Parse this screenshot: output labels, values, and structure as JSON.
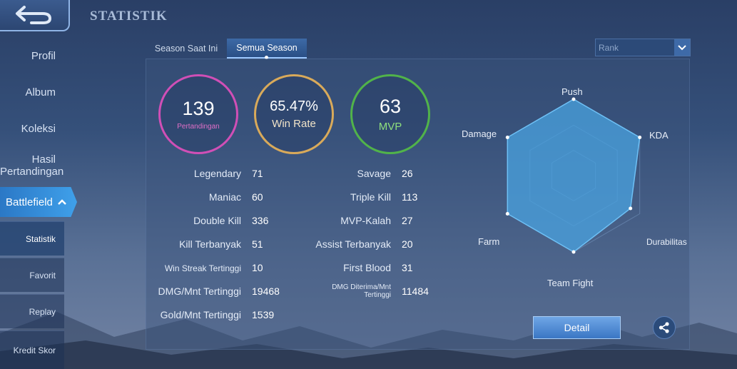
{
  "page_title": "STATISTIK",
  "sidebar": {
    "items": [
      {
        "label": "Profil"
      },
      {
        "label": "Album"
      },
      {
        "label": "Koleksi"
      },
      {
        "label": "Hasil Pertandingan"
      },
      {
        "label": "Battlefield"
      }
    ],
    "subitems": [
      {
        "label": "Statistik"
      },
      {
        "label": "Favorit"
      },
      {
        "label": "Replay"
      },
      {
        "label": "Kredit Skor"
      }
    ]
  },
  "tabs": {
    "season": "Season Saat Ini",
    "all": "Semua Season"
  },
  "rank_select": {
    "value": "Rank"
  },
  "summary": {
    "matches": {
      "value": "139",
      "label": "Pertandingan"
    },
    "winrate": {
      "value": "65.47%",
      "label": "Win Rate"
    },
    "mvp": {
      "value": "63",
      "label": "MVP"
    }
  },
  "stats_left": [
    {
      "label": "Legendary",
      "value": "71"
    },
    {
      "label": "Maniac",
      "value": "60"
    },
    {
      "label": "Double Kill",
      "value": "336"
    },
    {
      "label": "Kill Terbanyak",
      "value": "51"
    },
    {
      "label": "Win Streak Tertinggi",
      "value": "10"
    },
    {
      "label": "DMG/Mnt Tertinggi",
      "value": "19468"
    },
    {
      "label": "Gold/Mnt Tertinggi",
      "value": "1539"
    }
  ],
  "stats_right": [
    {
      "label": "Savage",
      "value": "26"
    },
    {
      "label": "Triple Kill",
      "value": "113"
    },
    {
      "label": "MVP-Kalah",
      "value": "27"
    },
    {
      "label": "Assist Terbanyak",
      "value": "20"
    },
    {
      "label": "First Blood",
      "value": "31"
    },
    {
      "label": "DMG Diterima/Mnt Tertinggi",
      "value": "11484"
    }
  ],
  "radar": {
    "axes": [
      "Push",
      "KDA",
      "Durabilitas",
      "Team Fight",
      "Farm",
      "Damage"
    ],
    "values": [
      1.0,
      1.0,
      0.86,
      1.0,
      1.0,
      1.0
    ]
  },
  "buttons": {
    "detail": "Detail"
  },
  "colors": {
    "matches_ring": "#d04fb6",
    "winrate_ring": "#d9aa5a",
    "mvp_ring": "#51b34a",
    "radar_fill": "#4aa3e0",
    "accent": "#3fa0ea"
  },
  "icons": {
    "back": "back-arrow-icon",
    "share": "share-icon",
    "chevron": "chevron-down-icon",
    "collapse": "chevron-up-icon"
  }
}
